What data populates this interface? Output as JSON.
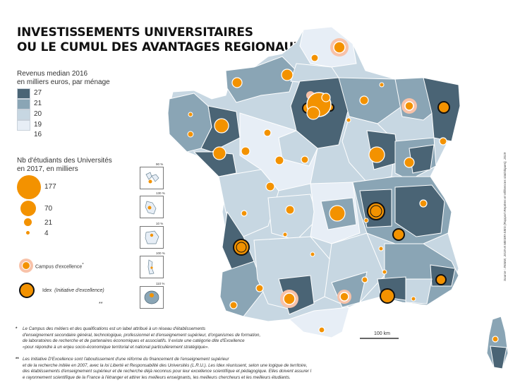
{
  "title": {
    "line1": "INVESTISSEMENTS UNIVERSITAIRES",
    "line2": "OU LE CUMUL DES AVANTAGES REGIONAUX"
  },
  "income_legend": {
    "title_line1": "Revenus median 2016",
    "title_line2": "en milliers euros, par ménage",
    "ticks": [
      "27",
      "21",
      "20",
      "19",
      "16"
    ],
    "class_colors": [
      "#4a6475",
      "#8aa5b5",
      "#c7d7e2",
      "#e7eef6"
    ]
  },
  "students_legend": {
    "title_line1": "Nb d'étudiants des Universités",
    "title_line2": "en 2017, en milliers",
    "sizes": [
      "177",
      "70",
      "21",
      "4"
    ],
    "bubble_color": "#f39200"
  },
  "markers": {
    "campus_label": "Campus d'excellence",
    "campus_star": "*",
    "idex_label": "Idex",
    "idex_sublabel": "(Initiative d'excellence)",
    "idex_stars": "**"
  },
  "insets": {
    "labels": [
      "90 %",
      "130 %",
      "10 %",
      "100 %",
      "110 %"
    ]
  },
  "scale": {
    "label": "100 km"
  },
  "source": "Source : INSEE, 2019 et MESRI-SIES (Rapport Repères et références statistiques), 2019",
  "footnotes": {
    "note1_mark": "*",
    "note1_lines": [
      "Le Campus des métiers et des qualifications est un label attribué à un réseau d'établissements",
      "d'enseignement secondaire général, technologique, professionnel et d'enseignement supérieur, d'organismes de formation,",
      "de laboratoires de recherche et de partenaires économiques et associatifs. Il existe une catégorie dite d'Excellence",
      "«pour répondre à un enjeu socio-économique territorial et national particulièrement stratégique»."
    ],
    "note2_mark": "**",
    "note2_lines": [
      "Les Initiative D'Excellence sont l'aboutissement d'une réforme du financement de l'enseignement supérieur",
      "et de la recherche initiée en 2007, avec la loi Liberté et Responsabilité des Universités (L.R.U.). Les Idex  réunissent,  selon une logique de territoire,",
      "des établissements d'enseignement supérieur et de recherche déjà reconnus pour leur excellence scientifique et pédagogique. Elles doivent assurer l",
      "e rayonnement scientifique de la France à l'étranger et attirer les meilleurs enseignants, les meilleurs chercheurs et les meilleurs étudiants."
    ]
  }
}
